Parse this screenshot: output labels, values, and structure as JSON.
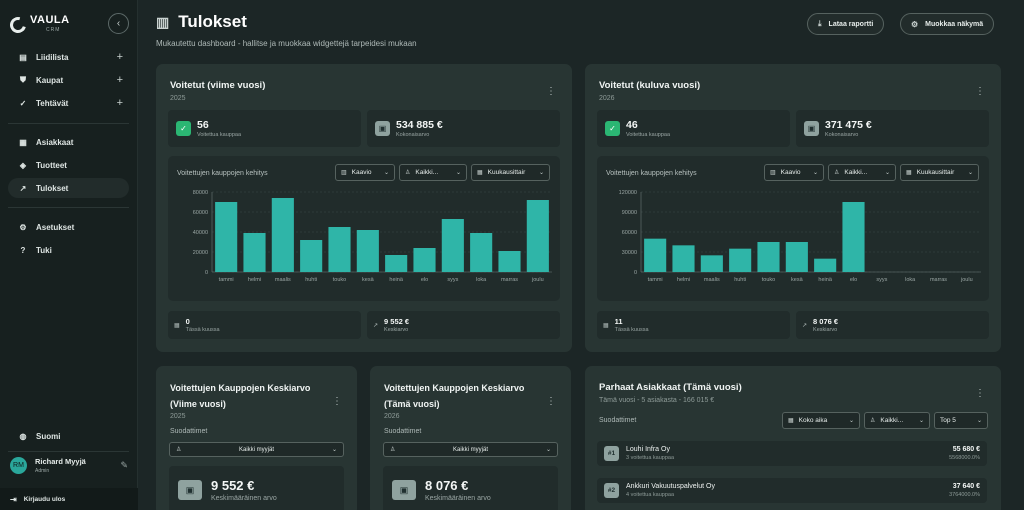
{
  "brand": {
    "name": "VAULA",
    "sub": "CRM"
  },
  "sidebar": {
    "groups": [
      {
        "label": "Liidilista",
        "icon": "clipboard-icon"
      },
      {
        "label": "Kaupat",
        "icon": "handshake-icon"
      },
      {
        "label": "Tehtävät",
        "icon": "check-circle-icon"
      }
    ],
    "items": [
      {
        "label": "Asiakkaat",
        "icon": "building-icon"
      },
      {
        "label": "Tuotteet",
        "icon": "box-icon"
      },
      {
        "label": "Tulokset",
        "icon": "trend-icon"
      }
    ],
    "settings": [
      {
        "label": "Asetukset",
        "icon": "gear-icon"
      },
      {
        "label": "Tuki",
        "icon": "help-icon"
      }
    ],
    "language": "Suomi",
    "user": {
      "initials": "RM",
      "name": "Richard Myyjä",
      "role": "Admin"
    },
    "logout": "Kirjaudu ulos"
  },
  "header": {
    "title": "Tulokset",
    "subtitle": "Mukautettu dashboard - hallitse ja muokkaa widgettejä tarpeidesi mukaan",
    "download_label": "Lataa raportti",
    "customize_label": "Muokkaa näkymä"
  },
  "cards": [
    {
      "title": "Voitetut (viime vuosi)",
      "year": "2025",
      "stat1": {
        "value": "56",
        "label": "Voitettua kauppaa"
      },
      "stat2": {
        "value": "534 885 €",
        "label": "Kokonaisarvo"
      },
      "chart_label": "Voitettujen kauppojen kehitys",
      "controls": [
        "Kaavio",
        "Kaikki...",
        "Kuukausittair"
      ],
      "foot1": {
        "value": "0",
        "label": "Tässä kuussa"
      },
      "foot2": {
        "value": "9 552 €",
        "label": "Keskiarvo"
      }
    },
    {
      "title": "Voitetut (kuluva vuosi)",
      "year": "2026",
      "stat1": {
        "value": "46",
        "label": "Voitettua kauppaa"
      },
      "stat2": {
        "value": "371 475 €",
        "label": "Kokonaisarvo"
      },
      "chart_label": "Voitettujen kauppojen kehitys",
      "controls": [
        "Kaavio",
        "Kaikki...",
        "Kuukausittair"
      ],
      "foot1": {
        "value": "11",
        "label": "Tässä kuussa"
      },
      "foot2": {
        "value": "8 076 €",
        "label": "Keskiarvo"
      }
    }
  ],
  "chart_data": [
    {
      "type": "bar",
      "categories": [
        "tammi",
        "helmi",
        "maalis",
        "huhti",
        "touko",
        "kesä",
        "heinä",
        "elo",
        "syys",
        "loka",
        "marras",
        "joulu"
      ],
      "values": [
        70000,
        39000,
        74000,
        32000,
        45000,
        42000,
        17000,
        24000,
        53000,
        39000,
        21000,
        72000
      ],
      "yticks": [
        "0",
        "20000",
        "40000",
        "60000",
        "80000"
      ],
      "ylim": [
        0,
        80000
      ],
      "color": "#2fb5a8"
    },
    {
      "type": "bar",
      "categories": [
        "tammi",
        "helmi",
        "maalis",
        "huhti",
        "touko",
        "kesä",
        "heinä",
        "elo",
        "syys",
        "loka",
        "marras",
        "joulu"
      ],
      "values": [
        50000,
        40000,
        25000,
        35000,
        45000,
        45000,
        20000,
        105000,
        0,
        0,
        0,
        0
      ],
      "yticks": [
        "0",
        "30000",
        "60000",
        "90000",
        "120000"
      ],
      "ylim": [
        0,
        120000
      ],
      "color": "#2fb5a8"
    }
  ],
  "avg_cards": [
    {
      "title_line1": "Voitettujen Kauppojen Keskiarvo",
      "title_line2": "(Viime vuosi)",
      "year": "2025",
      "filter_label": "Suodattimet",
      "select": "Kaikki myyjät",
      "value": "9 552 €",
      "value_label": "Keskimääräinen arvo"
    },
    {
      "title_line1": "Voitettujen Kauppojen Keskiarvo",
      "title_line2": "(Tämä vuosi)",
      "year": "2026",
      "filter_label": "Suodattimet",
      "select": "Kaikki myyjät",
      "value": "8 076 €",
      "value_label": "Keskimääräinen arvo"
    }
  ],
  "top_customers": {
    "title": "Parhaat Asiakkaat (Tämä vuosi)",
    "subtitle": "Tämä vuosi - 5 asiakasta - 166 015 €",
    "filter_label": "Suodattimet",
    "controls": [
      "Koko aika",
      "Kaikki...",
      "Top 5"
    ],
    "rows": [
      {
        "rank": "#1",
        "name": "Louhi Infra Oy",
        "deals": "3 voitettua kauppaa",
        "amount": "55 680 €",
        "pct": "5568000.0%"
      },
      {
        "rank": "#2",
        "name": "Ankkuri Vakuutuspalvelut Oy",
        "deals": "4 voitettua kauppaa",
        "amount": "37 640 €",
        "pct": "3764000.0%"
      }
    ]
  }
}
